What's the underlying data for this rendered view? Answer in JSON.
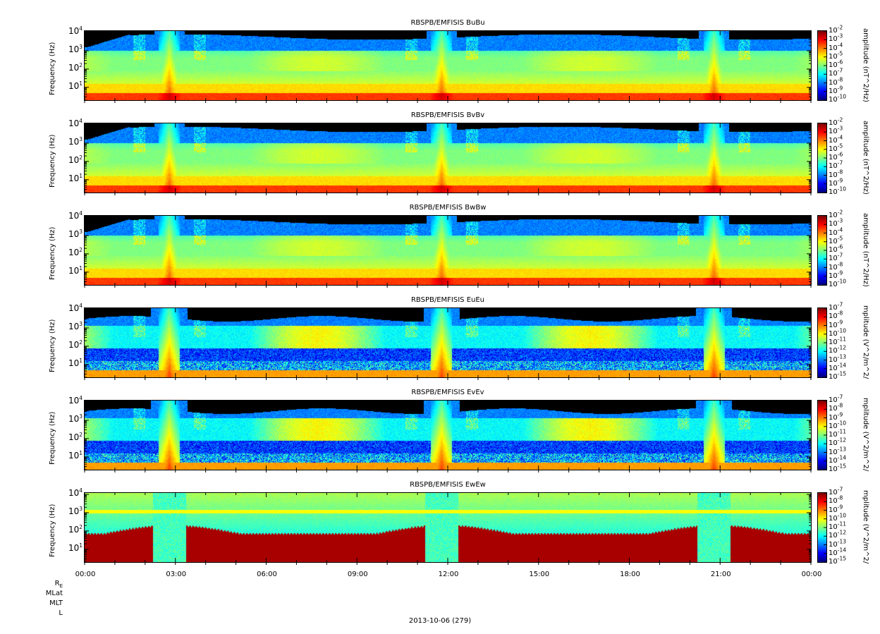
{
  "date_label": "2013-10-06 (279)",
  "ephemeris_labels": [
    "R_E",
    "MLat",
    "MLT",
    "L"
  ],
  "x_ticks": [
    "00:00",
    "03:00",
    "06:00",
    "09:00",
    "12:00",
    "15:00",
    "18:00",
    "21:00",
    "00:00"
  ],
  "chart_data": [
    {
      "type": "heatmap",
      "title": "RBSPB/EMFISIS  BuBu",
      "ylabel": "Frequency (Hz)",
      "yscale": "log",
      "ylim": [
        2,
        12000
      ],
      "y_ticks": [
        "10^1",
        "10^2",
        "10^3",
        "10^4"
      ],
      "colorbar_label": "amplitude (nT^2/Hz)",
      "colorbar_ticks": [
        "10^-2",
        "10^-3",
        "10^-4",
        "10^-5",
        "10^-6",
        "10^-7",
        "10^-8",
        "10^-9",
        "10^-10"
      ],
      "colorbar_range": [
        -10,
        -2
      ],
      "style": "B"
    },
    {
      "type": "heatmap",
      "title": "RBSPB/EMFISIS  BvBv",
      "ylabel": "Frequency (Hz)",
      "yscale": "log",
      "ylim": [
        2,
        12000
      ],
      "y_ticks": [
        "10^1",
        "10^2",
        "10^3",
        "10^4"
      ],
      "colorbar_label": "amplitude (nT^2/Hz)",
      "colorbar_ticks": [
        "10^-2",
        "10^-3",
        "10^-4",
        "10^-5",
        "10^-6",
        "10^-7",
        "10^-8",
        "10^-9",
        "10^-10"
      ],
      "colorbar_range": [
        -10,
        -2
      ],
      "style": "B"
    },
    {
      "type": "heatmap",
      "title": "RBSPB/EMFISIS  BwBw",
      "ylabel": "Frequency (Hz)",
      "yscale": "log",
      "ylim": [
        2,
        12000
      ],
      "y_ticks": [
        "10^1",
        "10^2",
        "10^3",
        "10^4"
      ],
      "colorbar_label": "amplitude (nT^2/Hz)",
      "colorbar_ticks": [
        "10^-2",
        "10^-3",
        "10^-4",
        "10^-5",
        "10^-6",
        "10^-7",
        "10^-8",
        "10^-9",
        "10^-10"
      ],
      "colorbar_range": [
        -10,
        -2
      ],
      "style": "Bw"
    },
    {
      "type": "heatmap",
      "title": "RBSPB/EMFISIS  EuEu",
      "ylabel": "Frequency (Hz)",
      "yscale": "log",
      "ylim": [
        2,
        12000
      ],
      "y_ticks": [
        "10^1",
        "10^2",
        "10^3",
        "10^4"
      ],
      "colorbar_label": "mplitude (V^2/m^2/",
      "colorbar_ticks": [
        "10^-7",
        "10^-8",
        "10^-9",
        "10^-10",
        "10^-11",
        "10^-12",
        "10^-13",
        "10^-14",
        "10^-15"
      ],
      "colorbar_range": [
        -15,
        -7
      ],
      "style": "E"
    },
    {
      "type": "heatmap",
      "title": "RBSPB/EMFISIS  EvEv",
      "ylabel": "Frequency (Hz)",
      "yscale": "log",
      "ylim": [
        2,
        12000
      ],
      "y_ticks": [
        "10^1",
        "10^2",
        "10^3",
        "10^4"
      ],
      "colorbar_label": "mplitude (V^2/m^2/",
      "colorbar_ticks": [
        "10^-7",
        "10^-8",
        "10^-9",
        "10^-10",
        "10^-11",
        "10^-12",
        "10^-13",
        "10^-14",
        "10^-15"
      ],
      "colorbar_range": [
        -15,
        -7
      ],
      "style": "E"
    },
    {
      "type": "heatmap",
      "title": "RBSPB/EMFISIS  EwEw",
      "ylabel": "Frequency (Hz)",
      "yscale": "log",
      "ylim": [
        2,
        12000
      ],
      "y_ticks": [
        "10^1",
        "10^2",
        "10^3",
        "10^4"
      ],
      "colorbar_label": "mplitude (V^2/m^2/",
      "colorbar_ticks": [
        "10^-7",
        "10^-8",
        "10^-9",
        "10^-10",
        "10^-11",
        "10^-12",
        "10^-13",
        "10^-14",
        "10^-15"
      ],
      "colorbar_range": [
        -15,
        -7
      ],
      "style": "Ew"
    }
  ]
}
